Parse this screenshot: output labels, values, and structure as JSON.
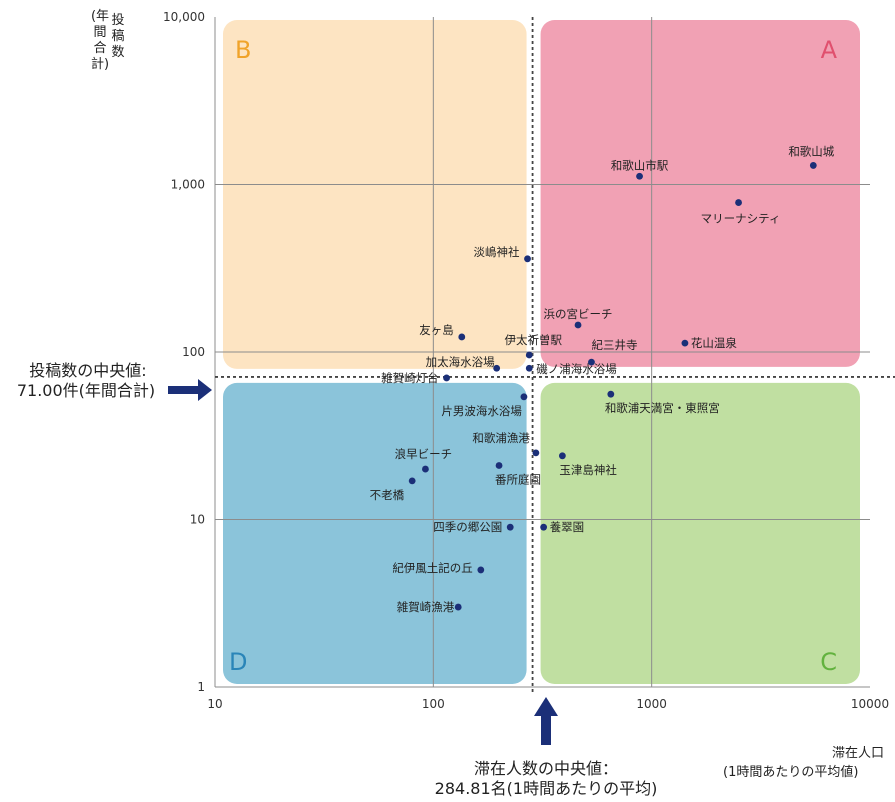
{
  "chart_data": {
    "type": "scatter",
    "x_scale": "log",
    "y_scale": "log",
    "xlim": [
      10,
      10000
    ],
    "ylim": [
      1,
      10000
    ],
    "x_ticks": [
      "10",
      "100",
      "1000",
      "10000"
    ],
    "y_ticks": [
      "1",
      "10",
      "100",
      "1,000",
      "10,000"
    ],
    "ylabel": [
      "投",
      "稿",
      "数",
      "(年",
      "間",
      "合",
      "計)"
    ],
    "xlabel": [
      "滞在人口",
      "(1時間あたりの平均値)"
    ],
    "grid": true,
    "colors": {
      "A": "#f1a1b4",
      "B": "#fde4c2",
      "C": "#c0dfa1",
      "D": "#8bc4da",
      "A_text": "#e0506e",
      "B_text": "#f0a32a",
      "C_text": "#62b23e",
      "D_text": "#2a85b8",
      "point": "#1b2f78",
      "arrow": "#1b2f78"
    },
    "quadrants": [
      "A",
      "B",
      "C",
      "D"
    ],
    "median_x": 284.81,
    "median_y": 71.0,
    "median_y_label": [
      "投稿数の中央値:",
      "71.00件(年間合計)"
    ],
    "median_x_label": [
      "滞在人数の中央値：",
      "284.81名(1時間あたりの平均)"
    ],
    "points": [
      {
        "name": "和歌山城",
        "x": 5500,
        "y": 1300
      },
      {
        "name": "和歌山市駅",
        "x": 880,
        "y": 1120
      },
      {
        "name": "マリーナシティ",
        "x": 2500,
        "y": 780
      },
      {
        "name": "淡嶋神社",
        "x": 270,
        "y": 360
      },
      {
        "name": "浜の宮ビーチ",
        "x": 460,
        "y": 145
      },
      {
        "name": "花山温泉",
        "x": 1420,
        "y": 113
      },
      {
        "name": "紀三井寺",
        "x": 530,
        "y": 87
      },
      {
        "name": "友ヶ島",
        "x": 135,
        "y": 123
      },
      {
        "name": "伊太祈曽駅",
        "x": 275,
        "y": 96
      },
      {
        "name": "加太海水浴場",
        "x": 195,
        "y": 80
      },
      {
        "name": "磯ノ浦海水浴場",
        "x": 275,
        "y": 80
      },
      {
        "name": "雑賀崎灯台",
        "x": 115,
        "y": 70
      },
      {
        "name": "和歌浦天満宮・東照宮",
        "x": 650,
        "y": 56
      },
      {
        "name": "片男波海水浴場",
        "x": 260,
        "y": 54
      },
      {
        "name": "和歌浦漁港",
        "x": 295,
        "y": 25
      },
      {
        "name": "玉津島神社",
        "x": 390,
        "y": 24
      },
      {
        "name": "浪早ビーチ",
        "x": 92,
        "y": 20
      },
      {
        "name": "番所庭園",
        "x": 200,
        "y": 21
      },
      {
        "name": "不老橋",
        "x": 80,
        "y": 17
      },
      {
        "name": "四季の郷公園",
        "x": 225,
        "y": 9
      },
      {
        "name": "養翠園",
        "x": 320,
        "y": 9
      },
      {
        "name": "紀伊風土記の丘",
        "x": 165,
        "y": 5
      },
      {
        "name": "雑賀崎漁港",
        "x": 130,
        "y": 3
      }
    ]
  }
}
